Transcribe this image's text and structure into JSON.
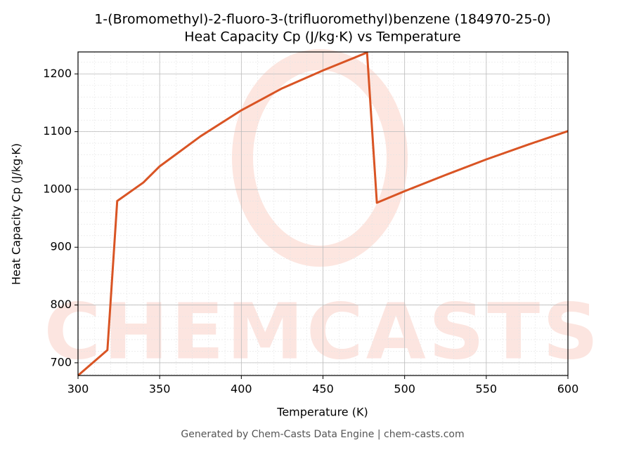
{
  "chart_data": {
    "type": "line",
    "title": "1-(Bromomethyl)-2-fluoro-3-(trifluoromethyl)benzene (184970-25-0)",
    "subtitle": "Heat Capacity Cp (J/kg·K) vs Temperature",
    "x_label": "Temperature (K)",
    "y_label": "Heat Capacity Cp (J/kg·K)",
    "footer": "Generated by Chem-Casts Data Engine | chem-casts.com",
    "watermark": "CHEMCASTS",
    "x": [
      300,
      318,
      324,
      340,
      350,
      375,
      400,
      425,
      450,
      477,
      483,
      500,
      525,
      550,
      575,
      600
    ],
    "series": [
      {
        "name": "Cp",
        "color": "#d95424",
        "values": [
          678,
          722,
          980,
          1012,
          1040,
          1092,
          1137,
          1175,
          1206,
          1237,
          977,
          997,
          1025,
          1052,
          1077,
          1101
        ]
      }
    ],
    "xlim": [
      300,
      600
    ],
    "xticks": [
      300,
      350,
      400,
      450,
      500,
      550,
      600
    ],
    "ylim": [
      678,
      1238
    ],
    "yticks": [
      700,
      800,
      900,
      1000,
      1100,
      1200
    ],
    "grid": true
  }
}
